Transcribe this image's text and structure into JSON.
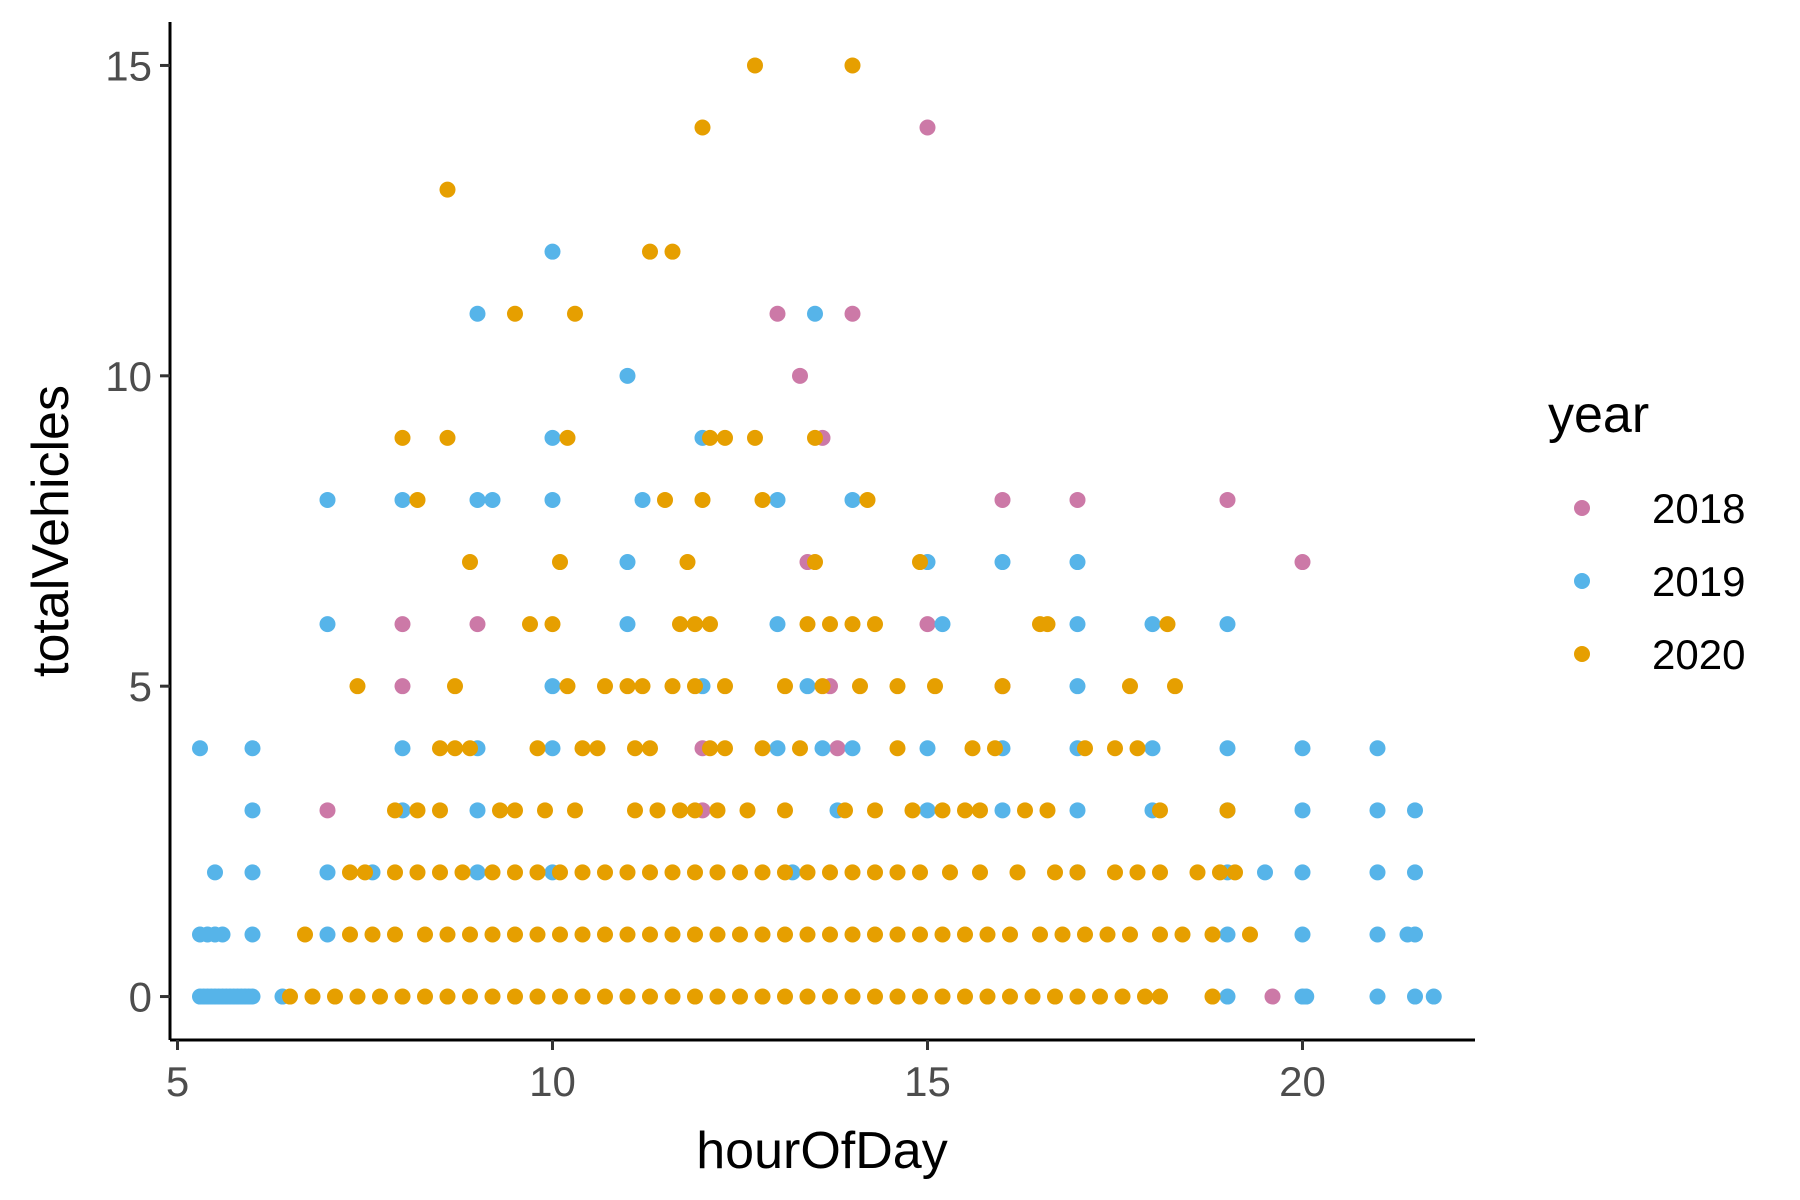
{
  "chart_data": {
    "type": "scatter",
    "xlabel": "hourOfDay",
    "ylabel": "totalVehicles",
    "xlim": [
      4.9,
      22.3
    ],
    "ylim": [
      -0.7,
      15.7
    ],
    "xticks": [
      5,
      10,
      15,
      20
    ],
    "yticks": [
      0,
      5,
      10,
      15
    ],
    "grid": false,
    "legend": {
      "title": "year",
      "placement": "right"
    },
    "series": [
      {
        "name": "2018",
        "color": "#CC79A7",
        "points": [
          [
            7,
            3
          ],
          [
            8,
            6
          ],
          [
            8,
            5
          ],
          [
            9,
            6
          ],
          [
            12,
            4
          ],
          [
            12,
            3
          ],
          [
            13,
            11
          ],
          [
            13.3,
            10
          ],
          [
            13.4,
            7
          ],
          [
            13.6,
            9
          ],
          [
            13.7,
            5
          ],
          [
            13.8,
            4
          ],
          [
            14,
            11
          ],
          [
            15,
            14
          ],
          [
            15,
            6
          ],
          [
            16,
            8
          ],
          [
            16,
            5
          ],
          [
            17,
            8
          ],
          [
            19,
            8
          ],
          [
            19.6,
            0
          ],
          [
            20,
            7
          ]
        ]
      },
      {
        "name": "2019",
        "color": "#56B4E9",
        "points": [
          [
            5.3,
            4
          ],
          [
            5.3,
            1
          ],
          [
            5.3,
            0
          ],
          [
            5.35,
            0
          ],
          [
            5.4,
            1
          ],
          [
            5.4,
            0
          ],
          [
            5.45,
            0
          ],
          [
            5.5,
            2
          ],
          [
            5.5,
            1
          ],
          [
            5.5,
            0
          ],
          [
            5.55,
            0
          ],
          [
            5.6,
            1
          ],
          [
            5.6,
            0
          ],
          [
            5.65,
            0
          ],
          [
            5.7,
            0
          ],
          [
            5.75,
            0
          ],
          [
            5.8,
            0
          ],
          [
            5.85,
            0
          ],
          [
            5.9,
            0
          ],
          [
            5.95,
            0
          ],
          [
            6,
            4
          ],
          [
            6,
            3
          ],
          [
            6,
            2
          ],
          [
            6,
            1
          ],
          [
            6,
            0
          ],
          [
            6.4,
            0
          ],
          [
            7,
            8
          ],
          [
            7,
            6
          ],
          [
            7,
            2
          ],
          [
            7,
            1
          ],
          [
            7.6,
            2
          ],
          [
            8,
            8
          ],
          [
            8,
            4
          ],
          [
            8,
            3
          ],
          [
            9,
            11
          ],
          [
            9,
            8
          ],
          [
            9.2,
            8
          ],
          [
            9,
            4
          ],
          [
            9,
            3
          ],
          [
            9,
            2
          ],
          [
            10,
            12
          ],
          [
            10,
            9
          ],
          [
            10,
            8
          ],
          [
            10,
            5
          ],
          [
            10,
            4
          ],
          [
            10,
            2
          ],
          [
            11,
            10
          ],
          [
            11,
            7
          ],
          [
            11,
            6
          ],
          [
            11.2,
            8
          ],
          [
            12,
            9
          ],
          [
            12,
            5
          ],
          [
            13,
            8
          ],
          [
            13,
            6
          ],
          [
            13,
            4
          ],
          [
            13.2,
            2
          ],
          [
            13.5,
            11
          ],
          [
            13.4,
            5
          ],
          [
            13.6,
            4
          ],
          [
            13.8,
            3
          ],
          [
            14,
            8
          ],
          [
            14,
            4
          ],
          [
            15,
            7
          ],
          [
            15.2,
            6
          ],
          [
            15,
            4
          ],
          [
            15,
            3
          ],
          [
            16,
            7
          ],
          [
            16,
            4
          ],
          [
            16,
            3
          ],
          [
            17,
            7
          ],
          [
            17,
            6
          ],
          [
            17,
            5
          ],
          [
            17,
            4
          ],
          [
            17,
            3
          ],
          [
            17,
            2
          ],
          [
            18,
            6
          ],
          [
            18,
            4
          ],
          [
            18,
            3
          ],
          [
            19,
            6
          ],
          [
            19,
            4
          ],
          [
            19,
            3
          ],
          [
            19,
            2
          ],
          [
            19,
            1
          ],
          [
            19,
            0
          ],
          [
            19.5,
            2
          ],
          [
            20,
            4
          ],
          [
            20,
            3
          ],
          [
            20,
            2
          ],
          [
            20,
            1
          ],
          [
            20,
            0
          ],
          [
            20.05,
            0
          ],
          [
            21,
            4
          ],
          [
            21,
            3
          ],
          [
            21,
            2
          ],
          [
            21,
            1
          ],
          [
            21,
            0
          ],
          [
            21.4,
            1
          ],
          [
            21.5,
            3
          ],
          [
            21.5,
            2
          ],
          [
            21.5,
            1
          ],
          [
            21.5,
            0
          ],
          [
            21.75,
            0
          ]
        ]
      },
      {
        "name": "2020",
        "color": "#E69F00",
        "points": [
          [
            12.7,
            15
          ],
          [
            14,
            15
          ],
          [
            12,
            14
          ],
          [
            8.6,
            13
          ],
          [
            11.3,
            12
          ],
          [
            11.6,
            12
          ],
          [
            9.5,
            11
          ],
          [
            10.3,
            11
          ],
          [
            8,
            9
          ],
          [
            8.6,
            9
          ],
          [
            10.2,
            9
          ],
          [
            12.1,
            9
          ],
          [
            12.3,
            9
          ],
          [
            12.7,
            9
          ],
          [
            13.5,
            9
          ],
          [
            8.2,
            8
          ],
          [
            11.5,
            8
          ],
          [
            12,
            8
          ],
          [
            12.8,
            8
          ],
          [
            14.2,
            8
          ],
          [
            8.9,
            7
          ],
          [
            10.1,
            7
          ],
          [
            11.8,
            7
          ],
          [
            13.5,
            7
          ],
          [
            14.9,
            7
          ],
          [
            9.7,
            6
          ],
          [
            10,
            6
          ],
          [
            11.7,
            6
          ],
          [
            11.9,
            6
          ],
          [
            12.1,
            6
          ],
          [
            13.4,
            6
          ],
          [
            13.7,
            6
          ],
          [
            14,
            6
          ],
          [
            14.3,
            6
          ],
          [
            16.5,
            6
          ],
          [
            16.6,
            6
          ],
          [
            18.2,
            6
          ],
          [
            7.4,
            5
          ],
          [
            8.7,
            5
          ],
          [
            10.2,
            5
          ],
          [
            10.7,
            5
          ],
          [
            11,
            5
          ],
          [
            11.2,
            5
          ],
          [
            11.6,
            5
          ],
          [
            11.9,
            5
          ],
          [
            12.3,
            5
          ],
          [
            13.1,
            5
          ],
          [
            13.6,
            5
          ],
          [
            14.1,
            5
          ],
          [
            14.6,
            5
          ],
          [
            15.1,
            5
          ],
          [
            16,
            5
          ],
          [
            17.7,
            5
          ],
          [
            18.3,
            5
          ],
          [
            8.5,
            4
          ],
          [
            8.7,
            4
          ],
          [
            8.9,
            4
          ],
          [
            9.8,
            4
          ],
          [
            10.4,
            4
          ],
          [
            10.6,
            4
          ],
          [
            11.1,
            4
          ],
          [
            11.3,
            4
          ],
          [
            12.1,
            4
          ],
          [
            12.3,
            4
          ],
          [
            12.8,
            4
          ],
          [
            13.3,
            4
          ],
          [
            14.6,
            4
          ],
          [
            15.6,
            4
          ],
          [
            15.9,
            4
          ],
          [
            17.1,
            4
          ],
          [
            17.5,
            4
          ],
          [
            17.8,
            4
          ],
          [
            7.9,
            3
          ],
          [
            8.2,
            3
          ],
          [
            8.5,
            3
          ],
          [
            9.3,
            3
          ],
          [
            9.5,
            3
          ],
          [
            9.9,
            3
          ],
          [
            10.3,
            3
          ],
          [
            11.1,
            3
          ],
          [
            11.4,
            3
          ],
          [
            11.7,
            3
          ],
          [
            11.9,
            3
          ],
          [
            12.2,
            3
          ],
          [
            12.6,
            3
          ],
          [
            13.1,
            3
          ],
          [
            13.9,
            3
          ],
          [
            14.3,
            3
          ],
          [
            14.8,
            3
          ],
          [
            15.2,
            3
          ],
          [
            15.5,
            3
          ],
          [
            15.7,
            3
          ],
          [
            16.3,
            3
          ],
          [
            16.6,
            3
          ],
          [
            18.1,
            3
          ],
          [
            19,
            3
          ],
          [
            7.3,
            2
          ],
          [
            7.5,
            2
          ],
          [
            7.9,
            2
          ],
          [
            8.2,
            2
          ],
          [
            8.5,
            2
          ],
          [
            8.8,
            2
          ],
          [
            9.2,
            2
          ],
          [
            9.5,
            2
          ],
          [
            9.8,
            2
          ],
          [
            10.1,
            2
          ],
          [
            10.4,
            2
          ],
          [
            10.7,
            2
          ],
          [
            11,
            2
          ],
          [
            11.3,
            2
          ],
          [
            11.6,
            2
          ],
          [
            11.9,
            2
          ],
          [
            12.2,
            2
          ],
          [
            12.5,
            2
          ],
          [
            12.8,
            2
          ],
          [
            13.1,
            2
          ],
          [
            13.4,
            2
          ],
          [
            13.7,
            2
          ],
          [
            14,
            2
          ],
          [
            14.3,
            2
          ],
          [
            14.6,
            2
          ],
          [
            14.9,
            2
          ],
          [
            15.3,
            2
          ],
          [
            15.7,
            2
          ],
          [
            16.2,
            2
          ],
          [
            16.7,
            2
          ],
          [
            17,
            2
          ],
          [
            17.5,
            2
          ],
          [
            17.8,
            2
          ],
          [
            18.1,
            2
          ],
          [
            18.6,
            2
          ],
          [
            18.9,
            2
          ],
          [
            19.1,
            2
          ],
          [
            6.7,
            1
          ],
          [
            7.3,
            1
          ],
          [
            7.6,
            1
          ],
          [
            7.9,
            1
          ],
          [
            8.3,
            1
          ],
          [
            8.6,
            1
          ],
          [
            8.9,
            1
          ],
          [
            9.2,
            1
          ],
          [
            9.5,
            1
          ],
          [
            9.8,
            1
          ],
          [
            10.1,
            1
          ],
          [
            10.4,
            1
          ],
          [
            10.7,
            1
          ],
          [
            11,
            1
          ],
          [
            11.3,
            1
          ],
          [
            11.6,
            1
          ],
          [
            11.9,
            1
          ],
          [
            12.2,
            1
          ],
          [
            12.5,
            1
          ],
          [
            12.8,
            1
          ],
          [
            13.1,
            1
          ],
          [
            13.4,
            1
          ],
          [
            13.7,
            1
          ],
          [
            14,
            1
          ],
          [
            14.3,
            1
          ],
          [
            14.6,
            1
          ],
          [
            14.9,
            1
          ],
          [
            15.2,
            1
          ],
          [
            15.5,
            1
          ],
          [
            15.8,
            1
          ],
          [
            16.1,
            1
          ],
          [
            16.5,
            1
          ],
          [
            16.8,
            1
          ],
          [
            17.1,
            1
          ],
          [
            17.4,
            1
          ],
          [
            17.7,
            1
          ],
          [
            18.1,
            1
          ],
          [
            18.4,
            1
          ],
          [
            18.8,
            1
          ],
          [
            19.3,
            1
          ],
          [
            6.5,
            0
          ],
          [
            6.8,
            0
          ],
          [
            7.1,
            0
          ],
          [
            7.4,
            0
          ],
          [
            7.7,
            0
          ],
          [
            8,
            0
          ],
          [
            8.3,
            0
          ],
          [
            8.6,
            0
          ],
          [
            8.9,
            0
          ],
          [
            9.2,
            0
          ],
          [
            9.5,
            0
          ],
          [
            9.8,
            0
          ],
          [
            10.1,
            0
          ],
          [
            10.4,
            0
          ],
          [
            10.7,
            0
          ],
          [
            11,
            0
          ],
          [
            11.3,
            0
          ],
          [
            11.6,
            0
          ],
          [
            11.9,
            0
          ],
          [
            12.2,
            0
          ],
          [
            12.5,
            0
          ],
          [
            12.8,
            0
          ],
          [
            13.1,
            0
          ],
          [
            13.4,
            0
          ],
          [
            13.7,
            0
          ],
          [
            14,
            0
          ],
          [
            14.3,
            0
          ],
          [
            14.6,
            0
          ],
          [
            14.9,
            0
          ],
          [
            15.2,
            0
          ],
          [
            15.5,
            0
          ],
          [
            15.8,
            0
          ],
          [
            16.1,
            0
          ],
          [
            16.4,
            0
          ],
          [
            16.7,
            0
          ],
          [
            17,
            0
          ],
          [
            17.3,
            0
          ],
          [
            17.6,
            0
          ],
          [
            17.9,
            0
          ],
          [
            18.1,
            0
          ],
          [
            18.8,
            0
          ]
        ]
      }
    ]
  }
}
